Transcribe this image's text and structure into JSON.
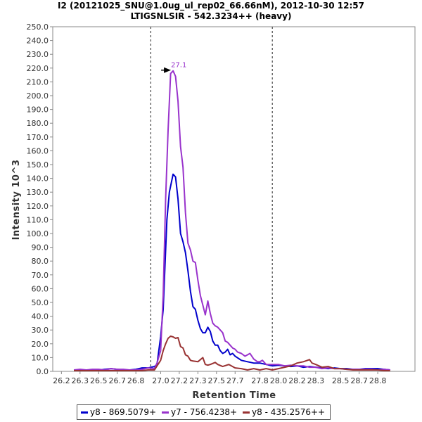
{
  "chart_data": {
    "type": "line",
    "title": "I2 (20121025_SNU@1.0ug_ul_rep02_66.66nM), 2012-10-30 12:57",
    "subtitle": "LTIGSNLSIR - 542.3234++ (heavy)",
    "xlabel": "Retention Time",
    "ylabel": "Intensity 10^3",
    "xlim": [
      26.13,
      29.05
    ],
    "ylim": [
      0,
      250
    ],
    "xticks": [
      "26.2",
      "26.3",
      "26.5",
      "26.7",
      "26.8",
      "27.0",
      "27.2",
      "27.3",
      "27.5",
      "27.7",
      "27.8",
      "28.0",
      "28.2",
      "28.3",
      "28.5",
      "28.7",
      "28.8"
    ],
    "xtick_values": [
      26.2,
      26.35,
      26.5,
      26.65,
      26.8,
      27.0,
      27.15,
      27.3,
      27.45,
      27.6,
      27.8,
      27.95,
      28.1,
      28.25,
      28.45,
      28.6,
      28.75
    ],
    "yticks": [
      "0.0",
      "10.0",
      "20.0",
      "30.0",
      "40.0",
      "50.0",
      "60.0",
      "70.0",
      "80.0",
      "90.0",
      "100.0",
      "110.0",
      "120.0",
      "130.0",
      "140.0",
      "150.0",
      "160.0",
      "170.0",
      "180.0",
      "190.0",
      "200.0",
      "210.0",
      "220.0",
      "230.0",
      "240.0",
      "250.0"
    ],
    "ytick_values": [
      0,
      10,
      20,
      30,
      40,
      50,
      60,
      70,
      80,
      90,
      100,
      110,
      120,
      130,
      140,
      150,
      160,
      170,
      180,
      190,
      200,
      210,
      220,
      230,
      240,
      250
    ],
    "integration_bounds": [
      26.92,
      27.9
    ],
    "peak_annotation": {
      "label": "27.1",
      "x": 27.1,
      "y": 218.0,
      "color": "#9933cc"
    },
    "legend_position": "bottom",
    "grid": false,
    "series": [
      {
        "name": "y8 - 869.5079+",
        "color": "#0000cc",
        "points": [
          [
            26.3,
            1.0
          ],
          [
            26.35,
            1.0
          ],
          [
            26.4,
            1.0
          ],
          [
            26.45,
            1.0
          ],
          [
            26.5,
            1.0
          ],
          [
            26.55,
            1.5
          ],
          [
            26.6,
            2.0
          ],
          [
            26.65,
            1.5
          ],
          [
            26.7,
            1.0
          ],
          [
            26.75,
            1.0
          ],
          [
            26.8,
            1.5
          ],
          [
            26.85,
            2.5
          ],
          [
            26.9,
            2.5
          ],
          [
            26.95,
            3.5
          ],
          [
            26.97,
            5.0
          ],
          [
            27.0,
            25.0
          ],
          [
            27.02,
            45.0
          ],
          [
            27.05,
            110.0
          ],
          [
            27.07,
            130.0
          ],
          [
            27.1,
            143.0
          ],
          [
            27.12,
            141.0
          ],
          [
            27.14,
            125.0
          ],
          [
            27.16,
            100.0
          ],
          [
            27.18,
            94.0
          ],
          [
            27.2,
            86.0
          ],
          [
            27.22,
            73.0
          ],
          [
            27.24,
            58.0
          ],
          [
            27.26,
            47.0
          ],
          [
            27.28,
            45.0
          ],
          [
            27.3,
            37.0
          ],
          [
            27.32,
            31.0
          ],
          [
            27.34,
            28.0
          ],
          [
            27.36,
            28.0
          ],
          [
            27.38,
            32.0
          ],
          [
            27.4,
            29.0
          ],
          [
            27.42,
            22.0
          ],
          [
            27.44,
            19.0
          ],
          [
            27.46,
            19.0
          ],
          [
            27.48,
            15.0
          ],
          [
            27.5,
            13.0
          ],
          [
            27.52,
            14.0
          ],
          [
            27.54,
            16.0
          ],
          [
            27.56,
            12.0
          ],
          [
            27.58,
            13.0
          ],
          [
            27.6,
            11.0
          ],
          [
            27.65,
            8.0
          ],
          [
            27.7,
            7.0
          ],
          [
            27.75,
            6.0
          ],
          [
            27.8,
            6.0
          ],
          [
            27.85,
            5.0
          ],
          [
            27.9,
            4.0
          ],
          [
            27.95,
            4.5
          ],
          [
            28.0,
            4.0
          ],
          [
            28.05,
            3.5
          ],
          [
            28.1,
            4.0
          ],
          [
            28.15,
            3.0
          ],
          [
            28.2,
            3.5
          ],
          [
            28.25,
            3.0
          ],
          [
            28.3,
            2.5
          ],
          [
            28.35,
            2.0
          ],
          [
            28.4,
            2.5
          ],
          [
            28.45,
            2.0
          ],
          [
            28.5,
            2.0
          ],
          [
            28.55,
            1.5
          ],
          [
            28.6,
            1.5
          ],
          [
            28.65,
            2.0
          ],
          [
            28.7,
            2.0
          ],
          [
            28.75,
            2.0
          ],
          [
            28.8,
            1.5
          ],
          [
            28.85,
            1.0
          ]
        ]
      },
      {
        "name": "y7 - 756.4238+",
        "color": "#9933cc",
        "points": [
          [
            26.3,
            1.0
          ],
          [
            26.35,
            1.5
          ],
          [
            26.4,
            1.0
          ],
          [
            26.45,
            1.5
          ],
          [
            26.5,
            1.5
          ],
          [
            26.55,
            1.0
          ],
          [
            26.6,
            2.0
          ],
          [
            26.65,
            1.5
          ],
          [
            26.7,
            1.5
          ],
          [
            26.75,
            1.0
          ],
          [
            26.8,
            1.0
          ],
          [
            26.85,
            1.5
          ],
          [
            26.9,
            2.5
          ],
          [
            26.95,
            2.0
          ],
          [
            26.97,
            6.0
          ],
          [
            27.0,
            15.0
          ],
          [
            27.02,
            55.0
          ],
          [
            27.04,
            125.0
          ],
          [
            27.06,
            175.0
          ],
          [
            27.08,
            216.0
          ],
          [
            27.1,
            218.0
          ],
          [
            27.12,
            214.0
          ],
          [
            27.14,
            196.0
          ],
          [
            27.16,
            163.0
          ],
          [
            27.18,
            148.0
          ],
          [
            27.2,
            115.0
          ],
          [
            27.22,
            93.0
          ],
          [
            27.24,
            88.0
          ],
          [
            27.26,
            80.0
          ],
          [
            27.28,
            79.0
          ],
          [
            27.3,
            66.0
          ],
          [
            27.32,
            55.0
          ],
          [
            27.34,
            48.0
          ],
          [
            27.36,
            41.0
          ],
          [
            27.38,
            51.0
          ],
          [
            27.4,
            42.0
          ],
          [
            27.42,
            35.0
          ],
          [
            27.44,
            33.0
          ],
          [
            27.46,
            32.0
          ],
          [
            27.48,
            30.0
          ],
          [
            27.5,
            28.0
          ],
          [
            27.52,
            22.0
          ],
          [
            27.54,
            21.0
          ],
          [
            27.56,
            19.0
          ],
          [
            27.58,
            17.0
          ],
          [
            27.6,
            16.0
          ],
          [
            27.62,
            14.0
          ],
          [
            27.65,
            13.0
          ],
          [
            27.68,
            11.0
          ],
          [
            27.7,
            12.0
          ],
          [
            27.72,
            13.0
          ],
          [
            27.75,
            9.0
          ],
          [
            27.78,
            7.0
          ],
          [
            27.8,
            7.0
          ],
          [
            27.82,
            8.0
          ],
          [
            27.85,
            5.0
          ],
          [
            27.9,
            5.0
          ],
          [
            27.95,
            5.0
          ],
          [
            28.0,
            4.0
          ],
          [
            28.05,
            4.5
          ],
          [
            28.1,
            4.0
          ],
          [
            28.15,
            4.0
          ],
          [
            28.2,
            3.0
          ],
          [
            28.25,
            3.0
          ],
          [
            28.3,
            2.0
          ],
          [
            28.35,
            2.5
          ],
          [
            28.4,
            2.0
          ],
          [
            28.45,
            2.0
          ],
          [
            28.5,
            1.5
          ],
          [
            28.55,
            1.5
          ],
          [
            28.6,
            1.5
          ],
          [
            28.65,
            1.5
          ],
          [
            28.7,
            1.5
          ],
          [
            28.75,
            1.0
          ],
          [
            28.8,
            1.5
          ],
          [
            28.85,
            1.0
          ]
        ]
      },
      {
        "name": "y8 - 435.2576++",
        "color": "#993333",
        "points": [
          [
            26.3,
            0.5
          ],
          [
            26.35,
            0.5
          ],
          [
            26.4,
            0.5
          ],
          [
            26.45,
            0.5
          ],
          [
            26.5,
            0.5
          ],
          [
            26.55,
            0.5
          ],
          [
            26.6,
            0.5
          ],
          [
            26.65,
            0.5
          ],
          [
            26.7,
            0.5
          ],
          [
            26.75,
            0.5
          ],
          [
            26.8,
            0.5
          ],
          [
            26.85,
            0.5
          ],
          [
            26.9,
            1.0
          ],
          [
            26.95,
            1.0
          ],
          [
            27.0,
            8.0
          ],
          [
            27.02,
            15.0
          ],
          [
            27.04,
            20.0
          ],
          [
            27.06,
            24.0
          ],
          [
            27.08,
            25.5
          ],
          [
            27.1,
            25.0
          ],
          [
            27.12,
            24.0
          ],
          [
            27.14,
            24.5
          ],
          [
            27.16,
            18.0
          ],
          [
            27.18,
            17.0
          ],
          [
            27.2,
            12.0
          ],
          [
            27.22,
            11.0
          ],
          [
            27.24,
            8.0
          ],
          [
            27.26,
            7.5
          ],
          [
            27.3,
            7.0
          ],
          [
            27.34,
            10.0
          ],
          [
            27.36,
            5.0
          ],
          [
            27.38,
            4.5
          ],
          [
            27.4,
            5.0
          ],
          [
            27.44,
            6.5
          ],
          [
            27.46,
            5.0
          ],
          [
            27.5,
            3.5
          ],
          [
            27.55,
            5.0
          ],
          [
            27.6,
            2.5
          ],
          [
            27.65,
            2.0
          ],
          [
            27.7,
            1.0
          ],
          [
            27.75,
            2.0
          ],
          [
            27.8,
            1.0
          ],
          [
            27.85,
            2.0
          ],
          [
            27.9,
            1.0
          ],
          [
            27.95,
            2.0
          ],
          [
            28.0,
            3.0
          ],
          [
            28.05,
            4.0
          ],
          [
            28.1,
            6.0
          ],
          [
            28.15,
            7.0
          ],
          [
            28.2,
            8.5
          ],
          [
            28.22,
            6.0
          ],
          [
            28.25,
            5.0
          ],
          [
            28.3,
            3.0
          ],
          [
            28.35,
            3.5
          ],
          [
            28.4,
            2.0
          ],
          [
            28.45,
            2.0
          ],
          [
            28.5,
            1.5
          ],
          [
            28.55,
            1.0
          ],
          [
            28.6,
            1.0
          ],
          [
            28.65,
            1.0
          ],
          [
            28.7,
            1.0
          ],
          [
            28.75,
            1.0
          ],
          [
            28.8,
            0.5
          ],
          [
            28.85,
            0.5
          ]
        ]
      }
    ]
  }
}
